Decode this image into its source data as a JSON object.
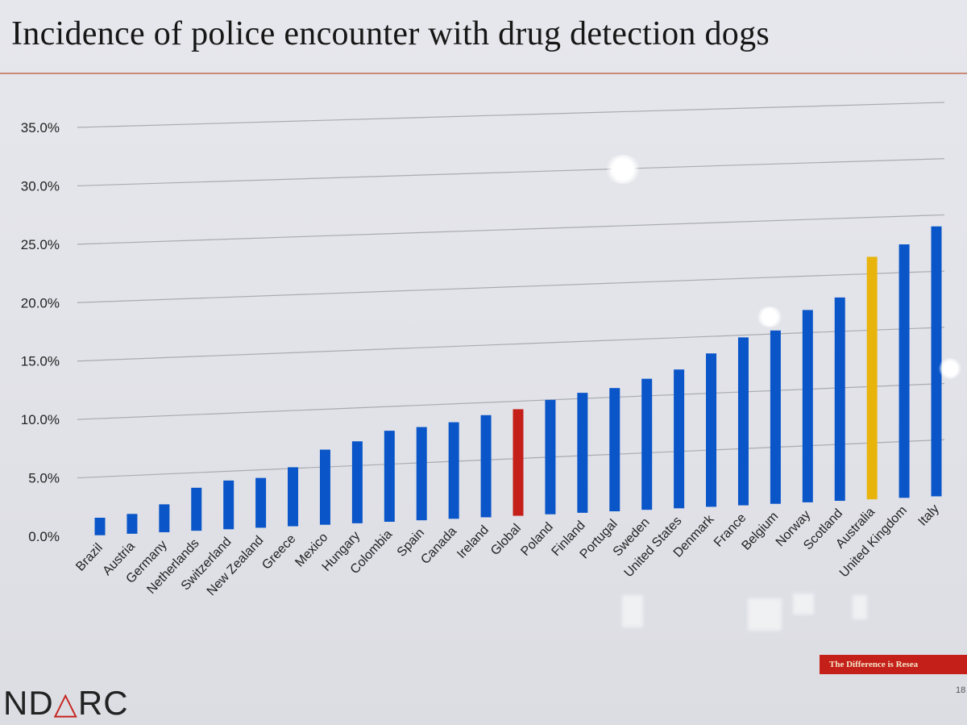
{
  "slide": {
    "title": "Incidence of police encounter with drug detection dogs",
    "logo": {
      "left": "ND",
      "triangle": "△",
      "right": "RC"
    },
    "tagline": "The Difference is Resea",
    "page_number": "18"
  },
  "colors": {
    "default_bar": "#0a55c8",
    "highlight_global": "#c51f1a",
    "highlight_australia": "#e8b40c",
    "grid": "#a9abb2",
    "text": "#222222"
  },
  "chart_data": {
    "type": "bar",
    "title": "Incidence of police encounter with drug detection dogs",
    "xlabel": "",
    "ylabel": "",
    "ylim": [
      0,
      0.35
    ],
    "yticks": [
      0,
      0.05,
      0.1,
      0.15,
      0.2,
      0.25,
      0.3,
      0.35
    ],
    "ytick_labels": [
      "0.0%",
      "5.0%",
      "10.0%",
      "15.0%",
      "20.0%",
      "25.0%",
      "30.0%",
      "35.0%"
    ],
    "grid": true,
    "legend": "none",
    "categories": [
      "Brazil",
      "Austria",
      "Germany",
      "Netherlands",
      "Switzerland",
      "New Zealand",
      "Greece",
      "Mexico",
      "Hungary",
      "Colombia",
      "Spain",
      "Canada",
      "Ireland",
      "Global",
      "Poland",
      "Finland",
      "Portugal",
      "Sweden",
      "United States",
      "Denmark",
      "France",
      "Belgium",
      "Norway",
      "Scotland",
      "Australia",
      "United Kingdom",
      "Italy"
    ],
    "values": [
      0.015,
      0.017,
      0.024,
      0.037,
      0.042,
      0.043,
      0.051,
      0.065,
      0.071,
      0.079,
      0.081,
      0.084,
      0.089,
      0.093,
      0.1,
      0.105,
      0.108,
      0.115,
      0.122,
      0.135,
      0.148,
      0.153,
      0.17,
      0.18,
      0.215,
      0.225,
      0.24
    ],
    "bar_colors": [
      "default",
      "default",
      "default",
      "default",
      "default",
      "default",
      "default",
      "default",
      "default",
      "default",
      "default",
      "default",
      "default",
      "highlight_global",
      "default",
      "default",
      "default",
      "default",
      "default",
      "default",
      "default",
      "default",
      "default",
      "default",
      "highlight_australia",
      "default",
      "default"
    ]
  }
}
